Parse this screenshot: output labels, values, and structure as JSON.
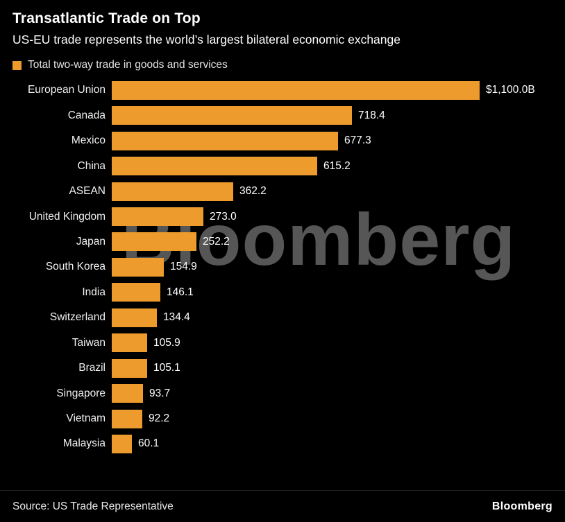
{
  "header": {
    "title": "Transatlantic Trade on Top",
    "subtitle": "US-EU trade represents the world’s largest bilateral economic exchange"
  },
  "legend": {
    "label": "Total two-way trade in goods and services"
  },
  "chart_data": {
    "type": "bar",
    "orientation": "horizontal",
    "title": "Transatlantic Trade on Top",
    "subtitle": "US-EU trade represents the world’s largest bilateral economic exchange",
    "legend_entries": [
      "Total two-way trade in goods and services"
    ],
    "legend_position": "top-left",
    "grid": false,
    "bar_color": "#EC9B2C",
    "xlim": [
      0,
      1100
    ],
    "unit": "billions USD",
    "categories": [
      "European Union",
      "Canada",
      "Mexico",
      "China",
      "ASEAN",
      "United Kingdom",
      "Japan",
      "South Korea",
      "India",
      "Switzerland",
      "Taiwan",
      "Brazil",
      "Singapore",
      "Vietnam",
      "Malaysia"
    ],
    "values": [
      1100.0,
      718.4,
      677.3,
      615.2,
      362.2,
      273.0,
      252.2,
      154.9,
      146.1,
      134.4,
      105.9,
      105.1,
      93.7,
      92.2,
      60.1
    ],
    "value_labels": [
      "$1,100.0B",
      "718.4",
      "677.3",
      "615.2",
      "362.2",
      "273.0",
      "252.2",
      "154.9",
      "146.1",
      "134.4",
      "105.9",
      "105.1",
      "93.7",
      "92.2",
      "60.1"
    ]
  },
  "watermark": "Bloomberg",
  "footer": {
    "source": "Source: US Trade Representative",
    "brand": "Bloomberg"
  }
}
